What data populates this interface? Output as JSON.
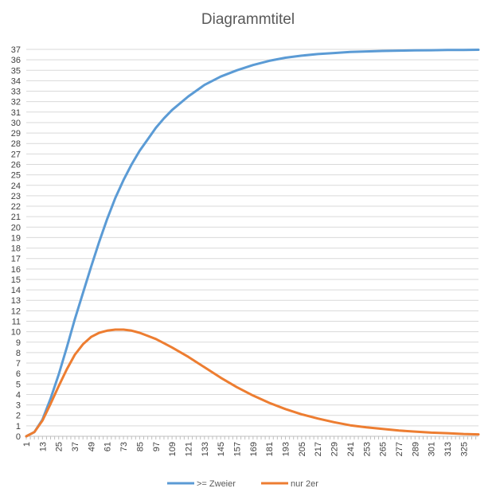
{
  "chart_data": {
    "type": "line",
    "title": "Diagrammtitel",
    "xlabel": "",
    "ylabel": "",
    "x_range": [
      1,
      336
    ],
    "ylim": [
      0,
      37
    ],
    "y_ticks": [
      0,
      1,
      2,
      3,
      4,
      5,
      6,
      7,
      8,
      9,
      10,
      11,
      12,
      13,
      14,
      15,
      16,
      17,
      18,
      19,
      20,
      21,
      22,
      23,
      24,
      25,
      26,
      27,
      28,
      29,
      30,
      31,
      32,
      33,
      34,
      35,
      36,
      37
    ],
    "x_tick_labels": [
      "1",
      "13",
      "25",
      "37",
      "49",
      "61",
      "73",
      "85",
      "97",
      "109",
      "121",
      "133",
      "145",
      "157",
      "169",
      "181",
      "193",
      "205",
      "217",
      "229",
      "241",
      "253",
      "265",
      "277",
      "289",
      "301",
      "313",
      "325"
    ],
    "grid": "horizontal",
    "legend_position": "bottom",
    "series": [
      {
        "name": ">= Zweier",
        "color": "#5b9bd5",
        "points": [
          [
            1,
            0
          ],
          [
            7,
            0.4
          ],
          [
            13,
            1.6
          ],
          [
            19,
            3.6
          ],
          [
            25,
            5.9
          ],
          [
            31,
            8.5
          ],
          [
            37,
            11.2
          ],
          [
            43,
            13.7
          ],
          [
            49,
            16.2
          ],
          [
            55,
            18.6
          ],
          [
            61,
            20.8
          ],
          [
            67,
            22.8
          ],
          [
            73,
            24.5
          ],
          [
            79,
            26.0
          ],
          [
            85,
            27.3
          ],
          [
            91,
            28.4
          ],
          [
            97,
            29.5
          ],
          [
            103,
            30.4
          ],
          [
            109,
            31.2
          ],
          [
            121,
            32.5
          ],
          [
            133,
            33.6
          ],
          [
            145,
            34.4
          ],
          [
            157,
            35.0
          ],
          [
            169,
            35.5
          ],
          [
            181,
            35.9
          ],
          [
            193,
            36.2
          ],
          [
            205,
            36.4
          ],
          [
            217,
            36.55
          ],
          [
            229,
            36.65
          ],
          [
            241,
            36.75
          ],
          [
            253,
            36.8
          ],
          [
            265,
            36.85
          ],
          [
            277,
            36.88
          ],
          [
            289,
            36.9
          ],
          [
            301,
            36.92
          ],
          [
            313,
            36.94
          ],
          [
            325,
            36.95
          ],
          [
            336,
            36.96
          ]
        ]
      },
      {
        "name": "nur 2er",
        "color": "#ed7d31",
        "points": [
          [
            1,
            0
          ],
          [
            7,
            0.4
          ],
          [
            13,
            1.5
          ],
          [
            19,
            3.1
          ],
          [
            25,
            4.8
          ],
          [
            31,
            6.4
          ],
          [
            37,
            7.8
          ],
          [
            43,
            8.8
          ],
          [
            49,
            9.5
          ],
          [
            55,
            9.9
          ],
          [
            61,
            10.1
          ],
          [
            67,
            10.2
          ],
          [
            73,
            10.2
          ],
          [
            79,
            10.1
          ],
          [
            85,
            9.9
          ],
          [
            91,
            9.6
          ],
          [
            97,
            9.3
          ],
          [
            103,
            8.9
          ],
          [
            109,
            8.5
          ],
          [
            121,
            7.6
          ],
          [
            133,
            6.6
          ],
          [
            145,
            5.6
          ],
          [
            157,
            4.7
          ],
          [
            169,
            3.9
          ],
          [
            181,
            3.2
          ],
          [
            193,
            2.6
          ],
          [
            205,
            2.1
          ],
          [
            217,
            1.7
          ],
          [
            229,
            1.35
          ],
          [
            241,
            1.05
          ],
          [
            253,
            0.85
          ],
          [
            265,
            0.7
          ],
          [
            277,
            0.55
          ],
          [
            289,
            0.45
          ],
          [
            301,
            0.35
          ],
          [
            313,
            0.3
          ],
          [
            325,
            0.22
          ],
          [
            336,
            0.18
          ]
        ]
      }
    ]
  }
}
